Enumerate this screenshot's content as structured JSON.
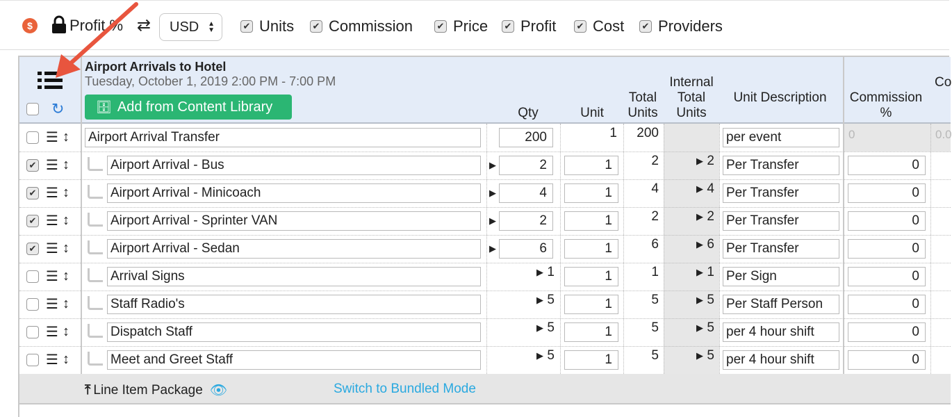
{
  "toolbar": {
    "dollar_symbol": "$",
    "profit_label": "Profit %",
    "currency": "USD",
    "toggles": [
      {
        "label": "Units",
        "checked": true
      },
      {
        "label": "Commission",
        "checked": true
      },
      {
        "label": "Price",
        "checked": true
      },
      {
        "label": "Profit",
        "checked": true
      },
      {
        "label": "Cost",
        "checked": true
      },
      {
        "label": "Providers",
        "checked": true
      }
    ]
  },
  "group": {
    "title": "Airport Arrivals to Hotel",
    "date": "Tuesday, October 1, 2019 2:00 PM - 7:00 PM",
    "add_button": "Add from Content Library"
  },
  "columns": {
    "qty": "Qty",
    "unit": "Unit",
    "total_units": "Total Units",
    "internal_total_units": "Internal Total Units",
    "unit_description": "Unit Description",
    "commission_pct": "Commission %",
    "next_col_fragment": "Co"
  },
  "rows": [
    {
      "name": "Airport Arrival Transfer",
      "checked": false,
      "child": false,
      "qty": "200",
      "qty_editable": true,
      "unit": "1",
      "unit_editable": false,
      "total": "200",
      "internal": "",
      "desc": "per event",
      "commission": "0",
      "commission_editable": false,
      "next": "0.0"
    },
    {
      "name": "Airport Arrival - Bus",
      "checked": true,
      "child": true,
      "qty": "2",
      "qty_editable": true,
      "unit": "1",
      "unit_editable": true,
      "total": "2",
      "internal": "2",
      "desc": "Per Transfer",
      "commission": "0",
      "commission_editable": true
    },
    {
      "name": "Airport Arrival - Minicoach",
      "checked": true,
      "child": true,
      "qty": "4",
      "qty_editable": true,
      "unit": "1",
      "unit_editable": true,
      "total": "4",
      "internal": "4",
      "desc": "Per Transfer",
      "commission": "0",
      "commission_editable": true
    },
    {
      "name": "Airport Arrival - Sprinter VAN",
      "checked": true,
      "child": true,
      "qty": "2",
      "qty_editable": true,
      "unit": "1",
      "unit_editable": true,
      "total": "2",
      "internal": "2",
      "desc": "Per Transfer",
      "commission": "0",
      "commission_editable": true
    },
    {
      "name": "Airport Arrival - Sedan",
      "checked": true,
      "child": true,
      "qty": "6",
      "qty_editable": true,
      "unit": "1",
      "unit_editable": true,
      "total": "6",
      "internal": "6",
      "desc": "Per Transfer",
      "commission": "0",
      "commission_editable": true
    },
    {
      "name": "Arrival Signs",
      "checked": false,
      "child": true,
      "qty": "1",
      "qty_editable": false,
      "unit": "1",
      "unit_editable": true,
      "total": "1",
      "internal": "1",
      "desc": "Per Sign",
      "commission": "0",
      "commission_editable": true
    },
    {
      "name": "Staff Radio's",
      "checked": false,
      "child": true,
      "qty": "5",
      "qty_editable": false,
      "unit": "1",
      "unit_editable": true,
      "total": "5",
      "internal": "5",
      "desc": "Per Staff Person",
      "commission": "0",
      "commission_editable": true
    },
    {
      "name": "Dispatch Staff",
      "checked": false,
      "child": true,
      "qty": "5",
      "qty_editable": false,
      "unit": "1",
      "unit_editable": true,
      "total": "5",
      "internal": "5",
      "desc": "per 4 hour shift",
      "commission": "0",
      "commission_editable": true
    },
    {
      "name": "Meet and Greet Staff",
      "checked": false,
      "child": true,
      "qty": "5",
      "qty_editable": false,
      "unit": "1",
      "unit_editable": true,
      "total": "5",
      "internal": "5",
      "desc": "per 4 hour shift",
      "commission": "0",
      "commission_editable": true
    }
  ],
  "footer": {
    "package_label": "Line Item Package",
    "switch_link": "Switch to Bundled Mode"
  },
  "colors": {
    "header_bg": "#e4ecf8",
    "add_button": "#2bb673",
    "link": "#2aa9e0",
    "annotation_arrow": "#e8553e"
  }
}
